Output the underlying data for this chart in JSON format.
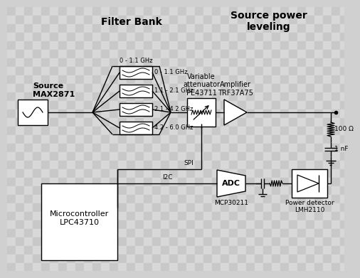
{
  "bg_checker_light": "#d8d8d8",
  "bg_checker_dark": "#c8c8c8",
  "checker_size": 12,
  "title_filter_bank": "Filter Bank",
  "title_source_power": "Source power\nleveling",
  "label_source": "Source\nMAX2871",
  "label_filter_freqs": [
    "0 - 1.1 GHz",
    "1.1 - 2.1 GHz",
    "2.1 - 4.2 GHz",
    "4.2 - 6.0 GHz"
  ],
  "label_variable_attenuator": "Variable\nattenuator\nPE43711",
  "label_amplifier": "Amplifier\nTRF37A75",
  "label_resistor": "100 Ω",
  "label_capacitor": "1 nF",
  "label_microcontroller": "Microcontroller\nLPC43710",
  "label_adc": "ADC",
  "label_adc_chip": "MCP30211",
  "label_power_detector": "Power detector\nLMH2110",
  "label_spi": "SPI",
  "label_i2c": "I2C"
}
